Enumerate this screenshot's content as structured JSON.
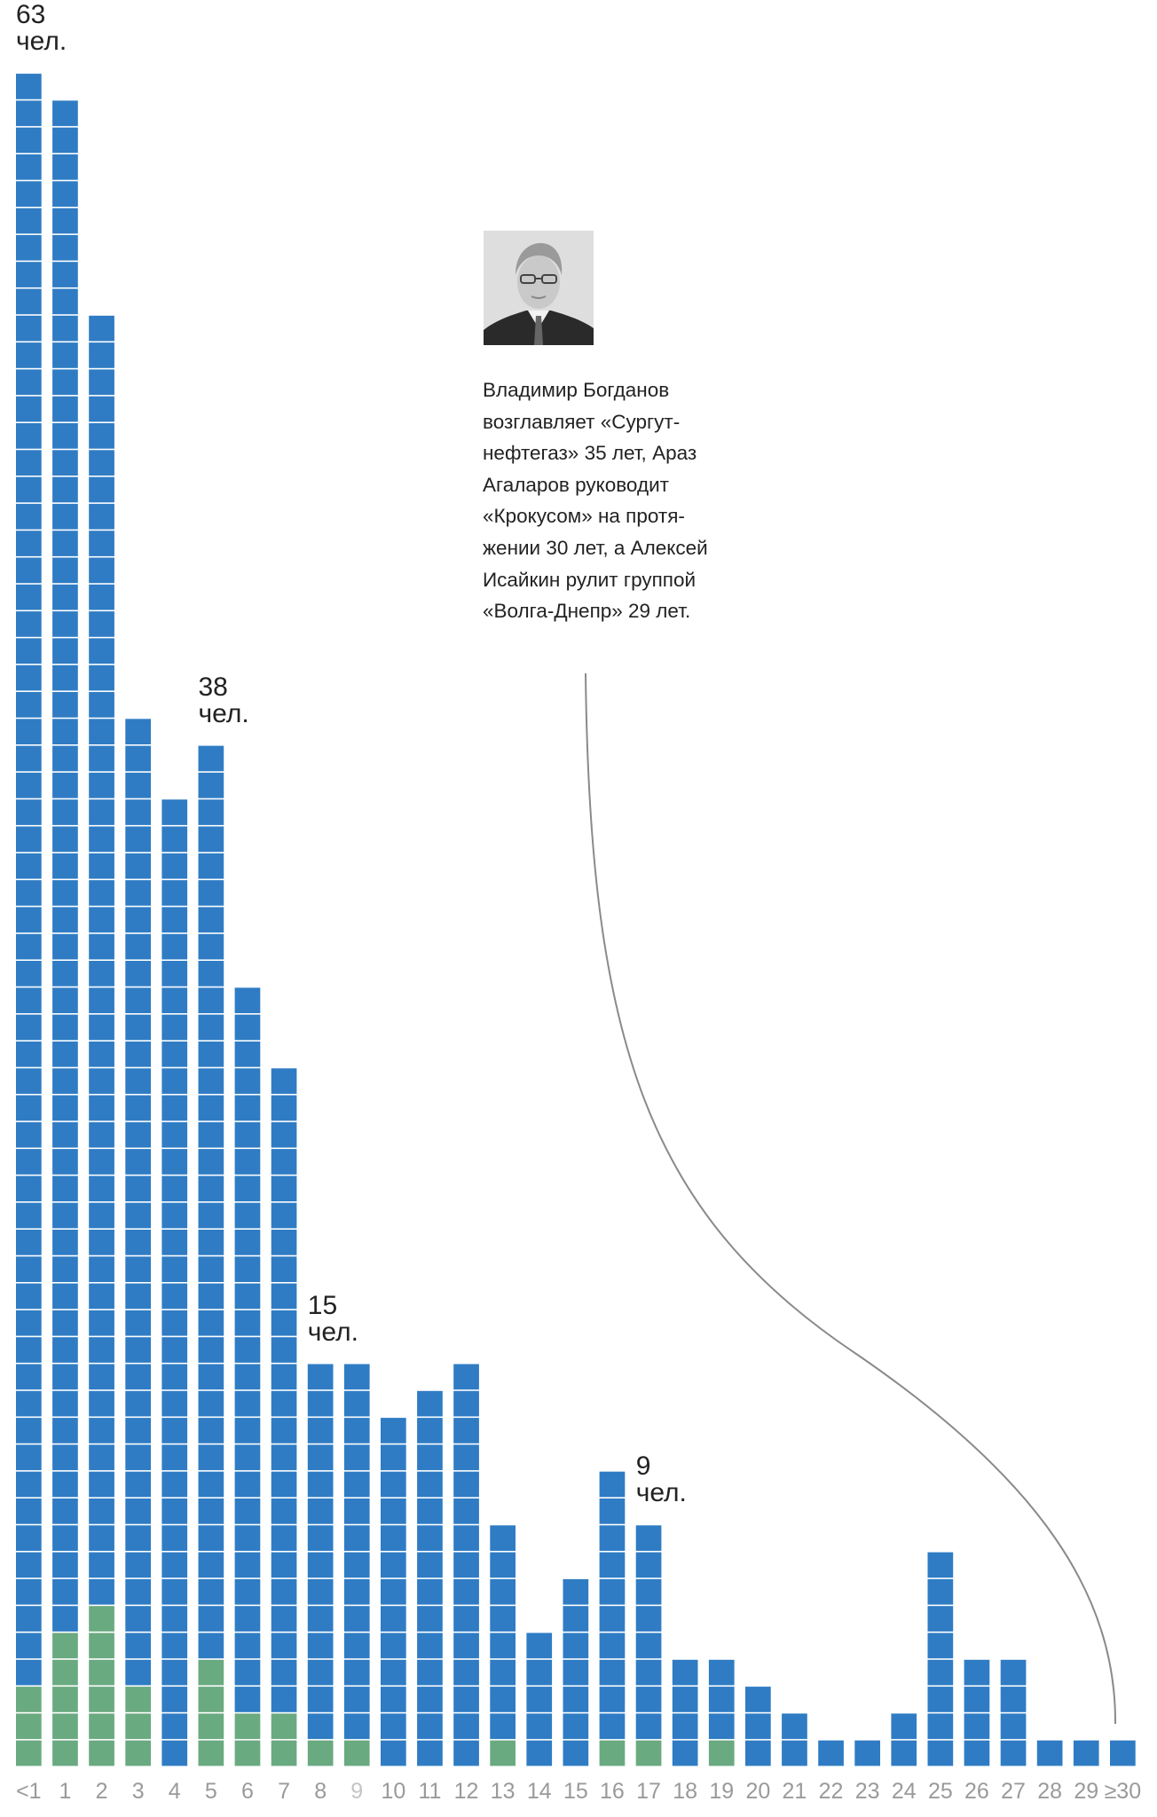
{
  "chart_data": {
    "type": "bar",
    "stacked": true,
    "categories": [
      "<1",
      "1",
      "2",
      "3",
      "4",
      "5",
      "6",
      "7",
      "8",
      "9",
      "10",
      "11",
      "12",
      "13",
      "14",
      "15",
      "16",
      "17",
      "18",
      "19",
      "20",
      "21",
      "22",
      "23",
      "24",
      "25",
      "26",
      "27",
      "28",
      "29",
      "≥30"
    ],
    "totals": [
      63,
      62,
      54,
      39,
      36,
      38,
      29,
      26,
      15,
      15,
      13,
      14,
      15,
      9,
      5,
      7,
      11,
      9,
      4,
      4,
      3,
      2,
      1,
      1,
      2,
      8,
      4,
      4,
      1,
      1,
      1
    ],
    "series": [
      {
        "values": [
          3,
          5,
          6,
          3,
          0,
          4,
          2,
          2,
          1,
          1,
          0,
          0,
          0,
          1,
          0,
          0,
          1,
          1,
          0,
          1,
          0,
          0,
          0,
          0,
          0,
          0,
          0,
          0,
          0,
          0,
          0
        ],
        "color": "#6aaa80"
      },
      {
        "values": [
          60,
          57,
          48,
          36,
          36,
          34,
          27,
          24,
          14,
          14,
          13,
          14,
          15,
          8,
          5,
          7,
          10,
          8,
          4,
          3,
          3,
          2,
          1,
          1,
          2,
          8,
          4,
          4,
          1,
          1,
          1
        ],
        "color": "#2f7cc4"
      }
    ],
    "dimmed_tick": "9",
    "tick_color": "#9a9a9a",
    "dimmed_tick_color": "#c4c4c4",
    "annotations": [
      {
        "category": "<1",
        "value": "63",
        "unit": "чел."
      },
      {
        "category": "5",
        "value": "38",
        "unit": "чел."
      },
      {
        "category": "8",
        "value": "15",
        "unit": "чел."
      },
      {
        "category": "17",
        "value": "9",
        "unit": "чел."
      }
    ],
    "grid": false
  },
  "callout": {
    "photo_icon": "portrait-photo",
    "lines": [
      "Владимир Богданов",
      "возглавляет «Сургут-",
      "нефтегаз» 35 лет, Араз",
      "Агаларов руководит",
      "«Крокусом» на протя-",
      "жении 30 лет, а Алексей",
      "Исайкин рулит группой",
      "«Волга-Днепр» 29 лет."
    ]
  }
}
